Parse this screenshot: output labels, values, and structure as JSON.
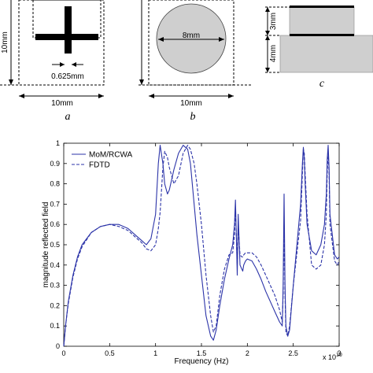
{
  "figure": {
    "panel_a": {
      "caption": "a",
      "width_label": "10mm",
      "height_label": "10mm",
      "gap_label": "0.625mm"
    },
    "panel_b": {
      "caption": "b",
      "width_label": "10mm",
      "diameter_label": "8mm"
    },
    "panel_c": {
      "caption": "c",
      "upper_label": "3mm",
      "lower_label": "4mm"
    }
  },
  "chart_data": {
    "type": "line",
    "title": "",
    "xlabel": "Frequency (Hz)",
    "ylabel": "magnitude reflected field",
    "x_exponent_label": "x 10",
    "x_exponent_power": "10",
    "xlim": [
      0,
      3
    ],
    "ylim": [
      0,
      1
    ],
    "x_ticks": [
      "0",
      "0.5",
      "1",
      "1.5",
      "2",
      "2.5",
      "3"
    ],
    "y_ticks": [
      "0",
      "0.1",
      "0.2",
      "0.3",
      "0.4",
      "0.5",
      "0.6",
      "0.7",
      "0.8",
      "0.9",
      "1"
    ],
    "legend_position": "top-left",
    "colors": {
      "line": "#2b33a8",
      "axis": "#000000"
    },
    "series": [
      {
        "name": "MoM/RCWA",
        "style": "solid",
        "x": [
          0,
          0.02,
          0.05,
          0.1,
          0.15,
          0.2,
          0.3,
          0.4,
          0.5,
          0.6,
          0.7,
          0.8,
          0.85,
          0.9,
          0.95,
          1.0,
          1.03,
          1.05,
          1.08,
          1.1,
          1.13,
          1.15,
          1.2,
          1.25,
          1.3,
          1.35,
          1.38,
          1.42,
          1.45,
          1.5,
          1.55,
          1.6,
          1.63,
          1.66,
          1.7,
          1.75,
          1.8,
          1.84,
          1.86,
          1.87,
          1.88,
          1.89,
          1.9,
          1.92,
          1.94,
          1.95,
          1.96,
          1.98,
          2.0,
          2.05,
          2.1,
          2.15,
          2.2,
          2.25,
          2.3,
          2.35,
          2.38,
          2.39,
          2.4,
          2.41,
          2.42,
          2.44,
          2.46,
          2.5,
          2.55,
          2.58,
          2.6,
          2.61,
          2.62,
          2.63,
          2.65,
          2.7,
          2.75,
          2.8,
          2.84,
          2.86,
          2.87,
          2.88,
          2.89,
          2.9,
          2.95,
          2.98,
          3.0
        ],
        "y": [
          0.0,
          0.1,
          0.22,
          0.35,
          0.44,
          0.5,
          0.56,
          0.59,
          0.6,
          0.6,
          0.58,
          0.54,
          0.52,
          0.5,
          0.53,
          0.65,
          0.9,
          0.99,
          0.9,
          0.8,
          0.75,
          0.77,
          0.87,
          0.95,
          0.99,
          0.97,
          0.9,
          0.7,
          0.55,
          0.35,
          0.15,
          0.05,
          0.03,
          0.08,
          0.2,
          0.33,
          0.43,
          0.5,
          0.6,
          0.72,
          0.55,
          0.35,
          0.65,
          0.4,
          0.38,
          0.37,
          0.4,
          0.42,
          0.43,
          0.42,
          0.38,
          0.33,
          0.27,
          0.22,
          0.17,
          0.12,
          0.1,
          0.3,
          0.75,
          0.3,
          0.1,
          0.05,
          0.08,
          0.3,
          0.55,
          0.7,
          0.9,
          0.98,
          0.92,
          0.8,
          0.6,
          0.47,
          0.45,
          0.5,
          0.6,
          0.75,
          0.92,
          0.99,
          0.88,
          0.65,
          0.45,
          0.43,
          0.44
        ]
      },
      {
        "name": "FDTD",
        "style": "dashed",
        "x": [
          0,
          0.02,
          0.05,
          0.1,
          0.15,
          0.2,
          0.3,
          0.4,
          0.5,
          0.6,
          0.7,
          0.8,
          0.85,
          0.9,
          0.95,
          1.0,
          1.03,
          1.05,
          1.08,
          1.1,
          1.13,
          1.15,
          1.2,
          1.25,
          1.3,
          1.35,
          1.38,
          1.42,
          1.45,
          1.5,
          1.55,
          1.6,
          1.63,
          1.66,
          1.7,
          1.75,
          1.8,
          1.84,
          1.86,
          1.87,
          1.88,
          1.89,
          1.9,
          1.92,
          1.94,
          1.95,
          1.96,
          1.98,
          2.0,
          2.05,
          2.1,
          2.15,
          2.2,
          2.25,
          2.3,
          2.35,
          2.38,
          2.39,
          2.4,
          2.41,
          2.42,
          2.44,
          2.46,
          2.5,
          2.55,
          2.58,
          2.6,
          2.61,
          2.62,
          2.63,
          2.65,
          2.7,
          2.75,
          2.8,
          2.84,
          2.86,
          2.87,
          2.88,
          2.89,
          2.9,
          2.95,
          2.98,
          3.0
        ],
        "y": [
          0.0,
          0.1,
          0.21,
          0.34,
          0.43,
          0.49,
          0.56,
          0.59,
          0.6,
          0.59,
          0.57,
          0.53,
          0.51,
          0.48,
          0.47,
          0.5,
          0.58,
          0.66,
          0.88,
          0.96,
          0.93,
          0.88,
          0.8,
          0.84,
          0.95,
          0.99,
          0.97,
          0.9,
          0.8,
          0.6,
          0.35,
          0.15,
          0.07,
          0.1,
          0.25,
          0.38,
          0.45,
          0.46,
          0.55,
          0.68,
          0.55,
          0.4,
          0.6,
          0.45,
          0.44,
          0.44,
          0.45,
          0.46,
          0.46,
          0.46,
          0.44,
          0.4,
          0.35,
          0.3,
          0.25,
          0.18,
          0.12,
          0.25,
          0.6,
          0.25,
          0.07,
          0.05,
          0.1,
          0.3,
          0.5,
          0.62,
          0.85,
          0.97,
          0.95,
          0.85,
          0.65,
          0.4,
          0.38,
          0.4,
          0.5,
          0.65,
          0.85,
          0.96,
          0.85,
          0.6,
          0.42,
          0.4,
          0.42
        ]
      }
    ]
  }
}
